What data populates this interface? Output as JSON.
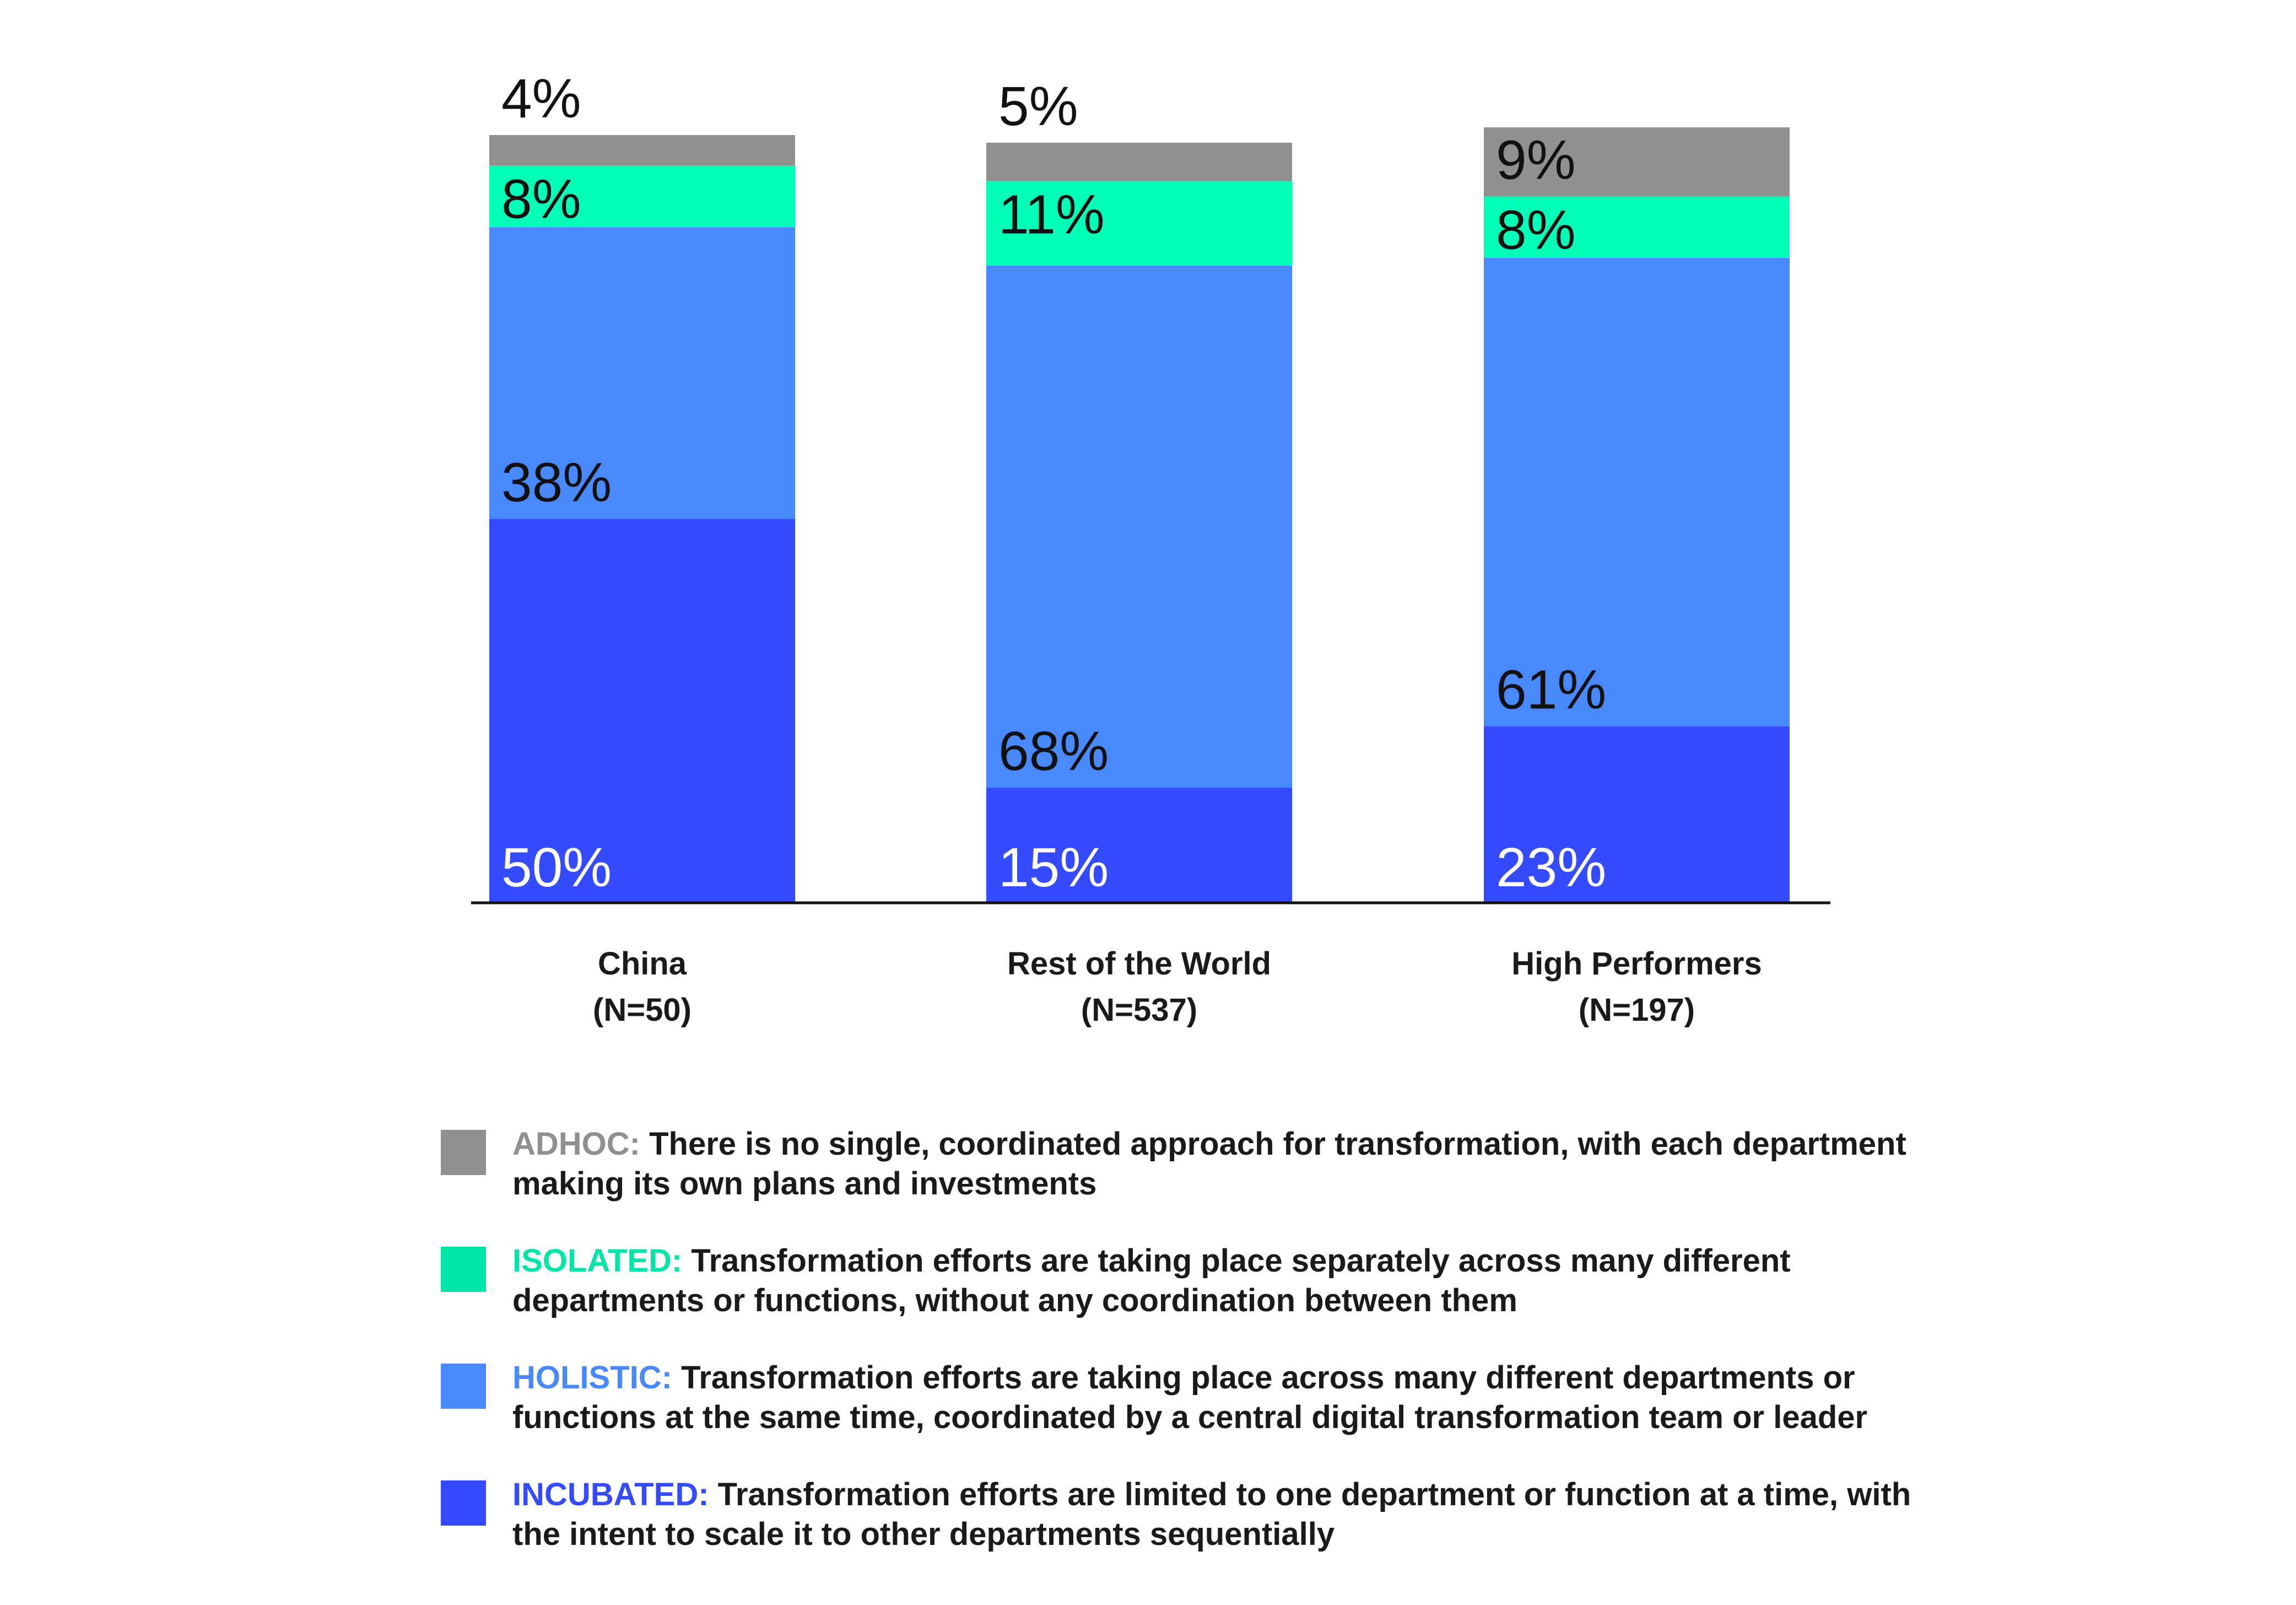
{
  "chart_data": {
    "type": "bar",
    "stacked": true,
    "categories": [
      {
        "name": "China",
        "n": "(N=50)"
      },
      {
        "name": "Rest of the World",
        "n": "(N=537)"
      },
      {
        "name": "High Performers",
        "n": "(N=197)"
      }
    ],
    "series": [
      {
        "name": "INCUBATED",
        "color": "#344bff",
        "label_color": "#ffffff",
        "values": [
          50,
          15,
          23
        ],
        "labels": [
          "50%",
          "15%",
          "23%"
        ]
      },
      {
        "name": "HOLISTIC",
        "color": "#4989ff",
        "label_color": "#111111",
        "values": [
          38,
          68,
          61
        ],
        "labels": [
          "38%",
          "68%",
          "61%"
        ]
      },
      {
        "name": "ISOLATED",
        "color": "#00ffb7",
        "label_color": "#111111",
        "values": [
          8,
          11,
          8
        ],
        "labels": [
          "8%",
          "11%",
          "8%"
        ]
      },
      {
        "name": "ADHOC",
        "color": "#909090",
        "label_color": "#111111",
        "values": [
          4,
          5,
          9
        ],
        "labels": [
          "4%",
          "5%",
          "9%"
        ]
      }
    ],
    "ylim": [
      0,
      100
    ],
    "grid": false,
    "legend_position": "bottom"
  },
  "legend": [
    {
      "key": "ADHOC:",
      "text": "There is no single, coordinated approach for transformation, with each department making its own plans and investments",
      "color": "#909090"
    },
    {
      "key": "ISOLATED:",
      "text": "Transformation efforts are taking place separately across many different departments or functions, without any coordination between them",
      "color": "#00e6a8"
    },
    {
      "key": "HOLISTIC:",
      "text": "Transformation efforts are taking place across many different departments or functions at the same time, coordinated by a central digital transformation team or leader",
      "color": "#4989ff"
    },
    {
      "key": "INCUBATED:",
      "text": "Transformation efforts are limited to one department or function at a time, with the intent to scale it to other departments sequentially",
      "color": "#344bff"
    }
  ]
}
